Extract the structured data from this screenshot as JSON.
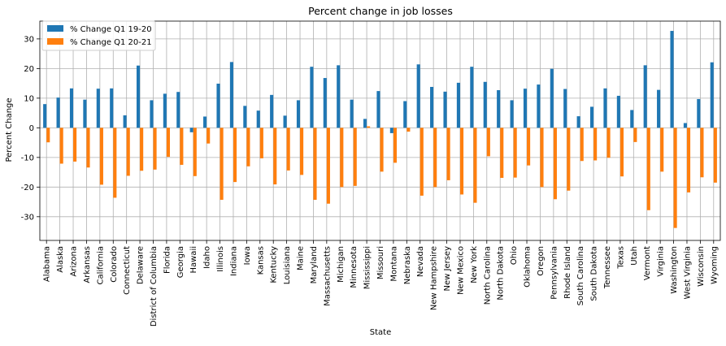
{
  "chart_data": {
    "type": "bar",
    "title": "Percent change in job losses",
    "xlabel": "State",
    "ylabel": "Percent Change",
    "ylim": [
      -38,
      36
    ],
    "yticks": [
      -30,
      -20,
      -10,
      0,
      10,
      20,
      30
    ],
    "grid": true,
    "legend_position": "top-left",
    "categories": [
      "Alabama",
      "Alaska",
      "Arizona",
      "Arkansas",
      "California",
      "Colorado",
      "Connecticut",
      "Delaware",
      "District of Columbia",
      "Florida",
      "Georgia",
      "Hawaii",
      "Idaho",
      "Illinois",
      "Indiana",
      "Iowa",
      "Kansas",
      "Kentucky",
      "Louisiana",
      "Maine",
      "Maryland",
      "Massachusetts",
      "Michigan",
      "Minnesota",
      "Mississippi",
      "Missouri",
      "Montana",
      "Nebraska",
      "Nevada",
      "New Hampshire",
      "New Jersey",
      "New Mexico",
      "New York",
      "North Carolina",
      "North Dakota",
      "Ohio",
      "Oklahoma",
      "Oregon",
      "Pennsylvania",
      "Rhode Island",
      "South Carolina",
      "South Dakota",
      "Tennessee",
      "Texas",
      "Utah",
      "Vermont",
      "Virginia",
      "Washington",
      "West Virginia",
      "Wisconsin",
      "Wyoming"
    ],
    "series": [
      {
        "name": "% Change Q1 19-20",
        "color": "#1f77b4",
        "values": [
          8.0,
          10.2,
          13.3,
          9.5,
          13.2,
          13.3,
          4.2,
          21.0,
          9.3,
          11.5,
          12.1,
          -1.5,
          3.8,
          14.9,
          22.2,
          7.4,
          5.8,
          11.1,
          4.1,
          9.3,
          20.6,
          16.8,
          21.1,
          9.5,
          3.0,
          12.4,
          -1.8,
          9.0,
          21.4,
          13.8,
          12.2,
          15.2,
          20.6,
          15.5,
          12.7,
          9.3,
          13.2,
          14.6,
          19.9,
          13.1,
          3.9,
          7.1,
          13.3,
          10.8,
          6.0,
          21.1,
          12.8,
          32.7,
          1.6,
          9.7,
          22.1
        ]
      },
      {
        "name": "% Change Q1 20-21",
        "color": "#ff7f0e",
        "values": [
          -4.9,
          -12.1,
          -11.4,
          -13.4,
          -19.2,
          -23.6,
          -16.2,
          -14.5,
          -14.1,
          -9.8,
          -12.5,
          -16.3,
          -5.3,
          -24.3,
          -18.3,
          -13.0,
          -10.3,
          -19.1,
          -14.4,
          -15.9,
          -24.3,
          -25.6,
          -20.0,
          -19.6,
          0.5,
          -14.8,
          -11.8,
          -1.3,
          -22.9,
          -20.0,
          -17.7,
          -22.5,
          -25.3,
          -9.6,
          -16.9,
          -16.8,
          -12.7,
          -20.0,
          -24.1,
          -21.2,
          -11.2,
          -11.0,
          -10.1,
          -16.4,
          -4.8,
          -27.8,
          -14.8,
          -33.8,
          -21.8,
          -16.7,
          -18.5
        ]
      }
    ]
  }
}
